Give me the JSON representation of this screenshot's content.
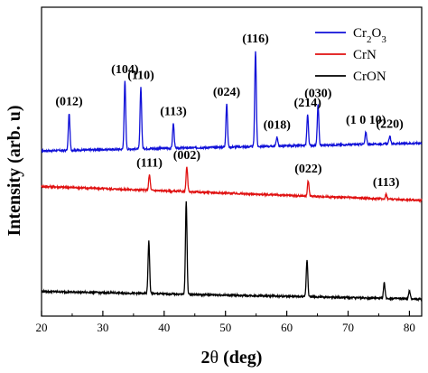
{
  "chart_data": {
    "type": "line",
    "xlabel_main": "2",
    "xlabel_theta": "θ",
    "xlabel_unit": " (deg)",
    "ylabel": "Intensity (arb. u)",
    "xlim": [
      20,
      82
    ],
    "ylim": [
      0,
      100
    ],
    "x_ticks": [
      20,
      30,
      40,
      50,
      60,
      70,
      80
    ],
    "y_ticks_labeled": false,
    "grid": false,
    "legend_position": "top-right",
    "legend_entries": [
      {
        "name_parts": [
          [
            "Cr",
            0
          ],
          [
            "2",
            1
          ],
          [
            "O",
            0
          ],
          [
            "3",
            1
          ]
        ],
        "color": "#1010d8"
      },
      {
        "name_parts": [
          [
            "CrN",
            0
          ]
        ],
        "color": "#e01010"
      },
      {
        "name_parts": [
          [
            "CrON",
            0
          ]
        ],
        "color": "#000000"
      }
    ],
    "series": [
      {
        "key": "Cr2O3",
        "color": "#1010d8",
        "baseline": [
          [
            20,
            53.5
          ],
          [
            82,
            56.0
          ]
        ],
        "peaks": [
          {
            "x": 24.5,
            "height": 12,
            "label": "(012)"
          },
          {
            "x": 33.6,
            "height": 22,
            "label": "(104)"
          },
          {
            "x": 36.2,
            "height": 20,
            "label": "(110)"
          },
          {
            "x": 41.5,
            "height": 8,
            "label": "(113)"
          },
          {
            "x": 50.2,
            "height": 14,
            "label": "(024)"
          },
          {
            "x": 54.9,
            "height": 31,
            "label": "(116)"
          },
          {
            "x": 58.4,
            "height": 3,
            "label": "(018)"
          },
          {
            "x": 63.4,
            "height": 10,
            "label": "(214)"
          },
          {
            "x": 65.1,
            "height": 13,
            "label": "(030)"
          },
          {
            "x": 72.9,
            "height": 4,
            "label": "(1 0 10)"
          },
          {
            "x": 76.8,
            "height": 2.5,
            "label": "(220)"
          }
        ]
      },
      {
        "key": "CrN",
        "color": "#e01010",
        "baseline": [
          [
            20,
            42.0
          ],
          [
            82,
            37.5
          ]
        ],
        "peaks": [
          {
            "x": 37.6,
            "height": 5,
            "label": "(111)"
          },
          {
            "x": 43.7,
            "height": 8,
            "label": "(002)"
          },
          {
            "x": 63.5,
            "height": 5,
            "label": "(022)"
          },
          {
            "x": 76.2,
            "height": 1.5,
            "label": "(113)"
          }
        ]
      },
      {
        "key": "CrON",
        "color": "#000000",
        "baseline": [
          [
            20,
            8.0
          ],
          [
            82,
            5.5
          ]
        ],
        "peaks": [
          {
            "x": 37.5,
            "height": 17
          },
          {
            "x": 43.6,
            "height": 30
          },
          {
            "x": 63.3,
            "height": 12
          },
          {
            "x": 75.9,
            "height": 5
          },
          {
            "x": 80.0,
            "height": 2.5
          }
        ]
      }
    ]
  }
}
